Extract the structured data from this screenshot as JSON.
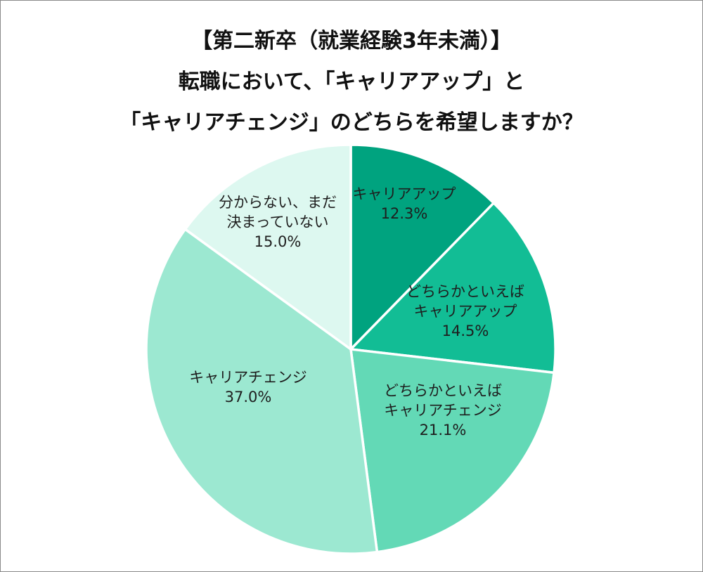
{
  "title_lines": [
    "【第二新卒（就業経験3年未満）】",
    "転職において、「キャリアアップ」と",
    "「キャリアチェンジ」のどちらを希望しますか？"
  ],
  "chart_data": {
    "type": "pie",
    "title": "【第二新卒（就業経験3年未満）】転職において、「キャリアアップ」と「キャリアチェンジ」のどちらを希望しますか？",
    "start": "12 o'clock",
    "direction": "clockwise",
    "slices": [
      {
        "label_lines": [
          "キャリアアップ"
        ],
        "value": 12.3,
        "value_text": "12.3%",
        "color": "#00a37f"
      },
      {
        "label_lines": [
          "どちらかといえば",
          "キャリアアップ"
        ],
        "value": 14.5,
        "value_text": "14.5%",
        "color": "#12bd95"
      },
      {
        "label_lines": [
          "どちらかといえば",
          "キャリアチェンジ"
        ],
        "value": 21.1,
        "value_text": "21.1%",
        "color": "#63d9b6"
      },
      {
        "label_lines": [
          "キャリアチェンジ"
        ],
        "value": 37.0,
        "value_text": "37.0%",
        "color": "#9ce8d1"
      },
      {
        "label_lines": [
          "分からない、まだ",
          "決まっていない"
        ],
        "value": 15.0,
        "value_text": "15.0%",
        "color": "#ddf8f0"
      }
    ]
  }
}
